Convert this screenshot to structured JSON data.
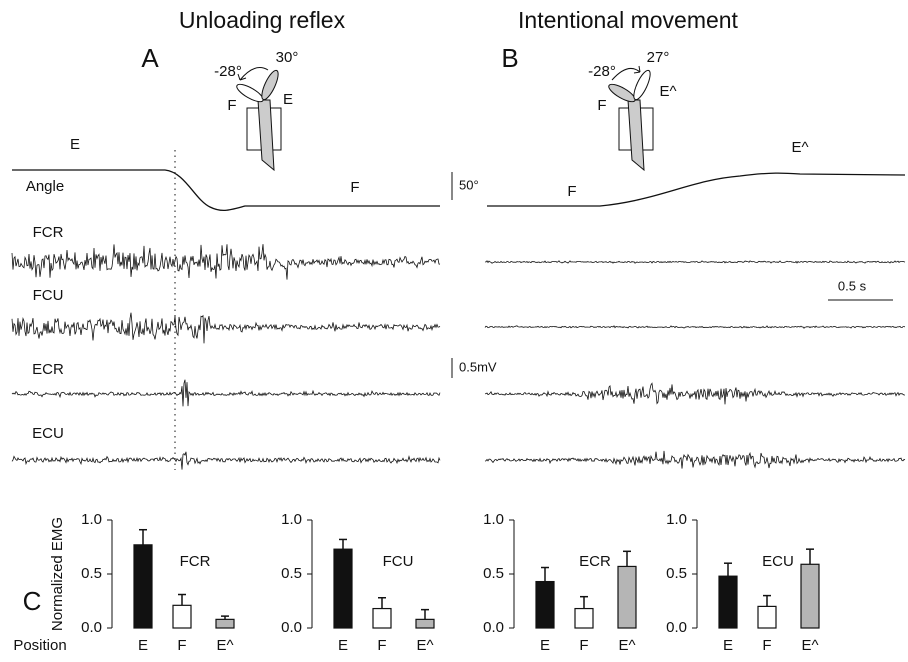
{
  "figure": {
    "titles": [
      "Unloading reflex",
      "Intentional movement"
    ],
    "panel_letters": [
      "A",
      "B",
      "C"
    ],
    "diagram_A": [
      "-28°",
      "30°",
      "F",
      "E"
    ],
    "diagram_B": [
      "-28°",
      "27°",
      "F",
      "E^"
    ],
    "trace_labels": {
      "angle": "Angle",
      "start_A": "E",
      "end_A": "F",
      "start_B": "F",
      "end_B": "E^",
      "muscles": [
        "FCR",
        "FCU",
        "ECR",
        "ECU"
      ]
    },
    "scale_bars": [
      "50°",
      "0.5 s",
      "0.5mV"
    ]
  },
  "chart_data": [
    {
      "type": "bar",
      "title": "FCR",
      "ylabel": "Normalized EMG",
      "xlabel": "Position",
      "categories": [
        "E",
        "F",
        "E^"
      ],
      "values": [
        0.77,
        0.21,
        0.08
      ],
      "errors": [
        0.14,
        0.1,
        0.03
      ],
      "colors": [
        "#111111",
        "#ffffff",
        "#b5b5b5"
      ],
      "ylim": [
        0,
        1
      ],
      "yticks": [
        {
          "value": 0,
          "label": "0.0"
        },
        {
          "value": 0.5,
          "label": "0.5"
        },
        {
          "value": 1,
          "label": "1.0"
        }
      ]
    },
    {
      "type": "bar",
      "title": "FCU",
      "categories": [
        "E",
        "F",
        "E^"
      ],
      "values": [
        0.73,
        0.18,
        0.08
      ],
      "errors": [
        0.09,
        0.1,
        0.09
      ],
      "colors": [
        "#111111",
        "#ffffff",
        "#b5b5b5"
      ],
      "ylim": [
        0,
        1
      ],
      "yticks": [
        {
          "value": 0,
          "label": "0.0"
        },
        {
          "value": 0.5,
          "label": "0.5"
        },
        {
          "value": 1,
          "label": "1.0"
        }
      ]
    },
    {
      "type": "bar",
      "title": "ECR",
      "categories": [
        "E",
        "F",
        "E^"
      ],
      "values": [
        0.43,
        0.18,
        0.57
      ],
      "errors": [
        0.13,
        0.11,
        0.14
      ],
      "colors": [
        "#111111",
        "#ffffff",
        "#b5b5b5"
      ],
      "ylim": [
        0,
        1
      ],
      "yticks": [
        {
          "value": 0,
          "label": "0.0"
        },
        {
          "value": 0.5,
          "label": "0.5"
        },
        {
          "value": 1,
          "label": "1.0"
        }
      ]
    },
    {
      "type": "bar",
      "title": "ECU",
      "categories": [
        "E",
        "F",
        "E^"
      ],
      "values": [
        0.48,
        0.2,
        0.59
      ],
      "errors": [
        0.12,
        0.1,
        0.14
      ],
      "colors": [
        "#111111",
        "#ffffff",
        "#b5b5b5"
      ],
      "ylim": [
        0,
        1
      ],
      "yticks": [
        {
          "value": 0,
          "label": "0.0"
        },
        {
          "value": 0.5,
          "label": "0.5"
        },
        {
          "value": 1,
          "label": "1.0"
        }
      ]
    }
  ]
}
